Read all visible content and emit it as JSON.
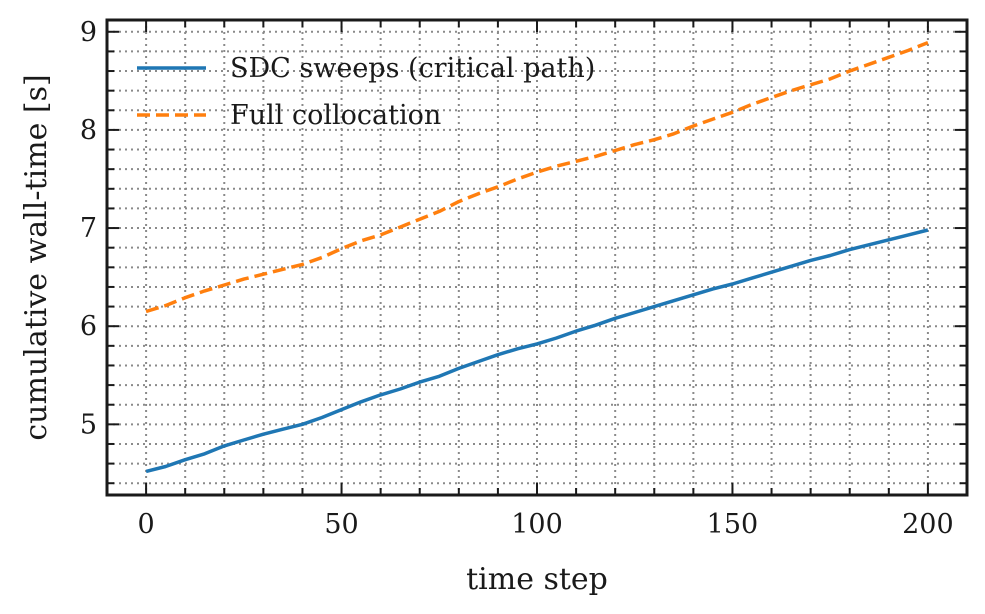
{
  "chart_data": {
    "type": "line",
    "xlabel": "time step",
    "ylabel": "cumulative wall-time [s]",
    "xlim": [
      -10,
      210
    ],
    "ylim": [
      4.28,
      9.12
    ],
    "x_ticks": [
      0,
      50,
      100,
      150,
      200
    ],
    "y_ticks": [
      5,
      6,
      7,
      8,
      9
    ],
    "grid": true,
    "legend_position": "top-left",
    "series": [
      {
        "name": "SDC sweeps (critical path)",
        "color": "#1f77b4",
        "linestyle": "solid",
        "x": [
          0,
          5,
          10,
          15,
          20,
          25,
          30,
          35,
          40,
          45,
          50,
          55,
          60,
          65,
          70,
          75,
          80,
          85,
          90,
          95,
          100,
          105,
          110,
          115,
          120,
          125,
          130,
          135,
          140,
          145,
          150,
          155,
          160,
          165,
          170,
          175,
          180,
          185,
          190,
          195,
          200
        ],
        "y": [
          4.52,
          4.57,
          4.64,
          4.7,
          4.78,
          4.84,
          4.9,
          4.95,
          5.0,
          5.07,
          5.15,
          5.23,
          5.3,
          5.36,
          5.43,
          5.49,
          5.57,
          5.64,
          5.71,
          5.77,
          5.82,
          5.88,
          5.95,
          6.01,
          6.08,
          6.14,
          6.2,
          6.26,
          6.32,
          6.38,
          6.43,
          6.49,
          6.55,
          6.61,
          6.67,
          6.72,
          6.78,
          6.83,
          6.88,
          6.93,
          6.98
        ]
      },
      {
        "name": "Full collocation",
        "color": "#ff7f0e",
        "linestyle": "dashed",
        "x": [
          0,
          5,
          10,
          15,
          20,
          25,
          30,
          35,
          40,
          45,
          50,
          55,
          60,
          65,
          70,
          75,
          80,
          85,
          90,
          95,
          100,
          105,
          110,
          115,
          120,
          125,
          130,
          135,
          140,
          145,
          150,
          155,
          160,
          165,
          170,
          175,
          180,
          185,
          190,
          195,
          200
        ],
        "y": [
          6.15,
          6.21,
          6.29,
          6.36,
          6.42,
          6.48,
          6.53,
          6.58,
          6.63,
          6.7,
          6.79,
          6.87,
          6.93,
          7.01,
          7.09,
          7.17,
          7.27,
          7.35,
          7.42,
          7.5,
          7.57,
          7.63,
          7.68,
          7.73,
          7.79,
          7.85,
          7.9,
          7.96,
          8.04,
          8.11,
          8.18,
          8.26,
          8.33,
          8.4,
          8.46,
          8.52,
          8.6,
          8.67,
          8.74,
          8.81,
          8.89
        ]
      }
    ]
  }
}
